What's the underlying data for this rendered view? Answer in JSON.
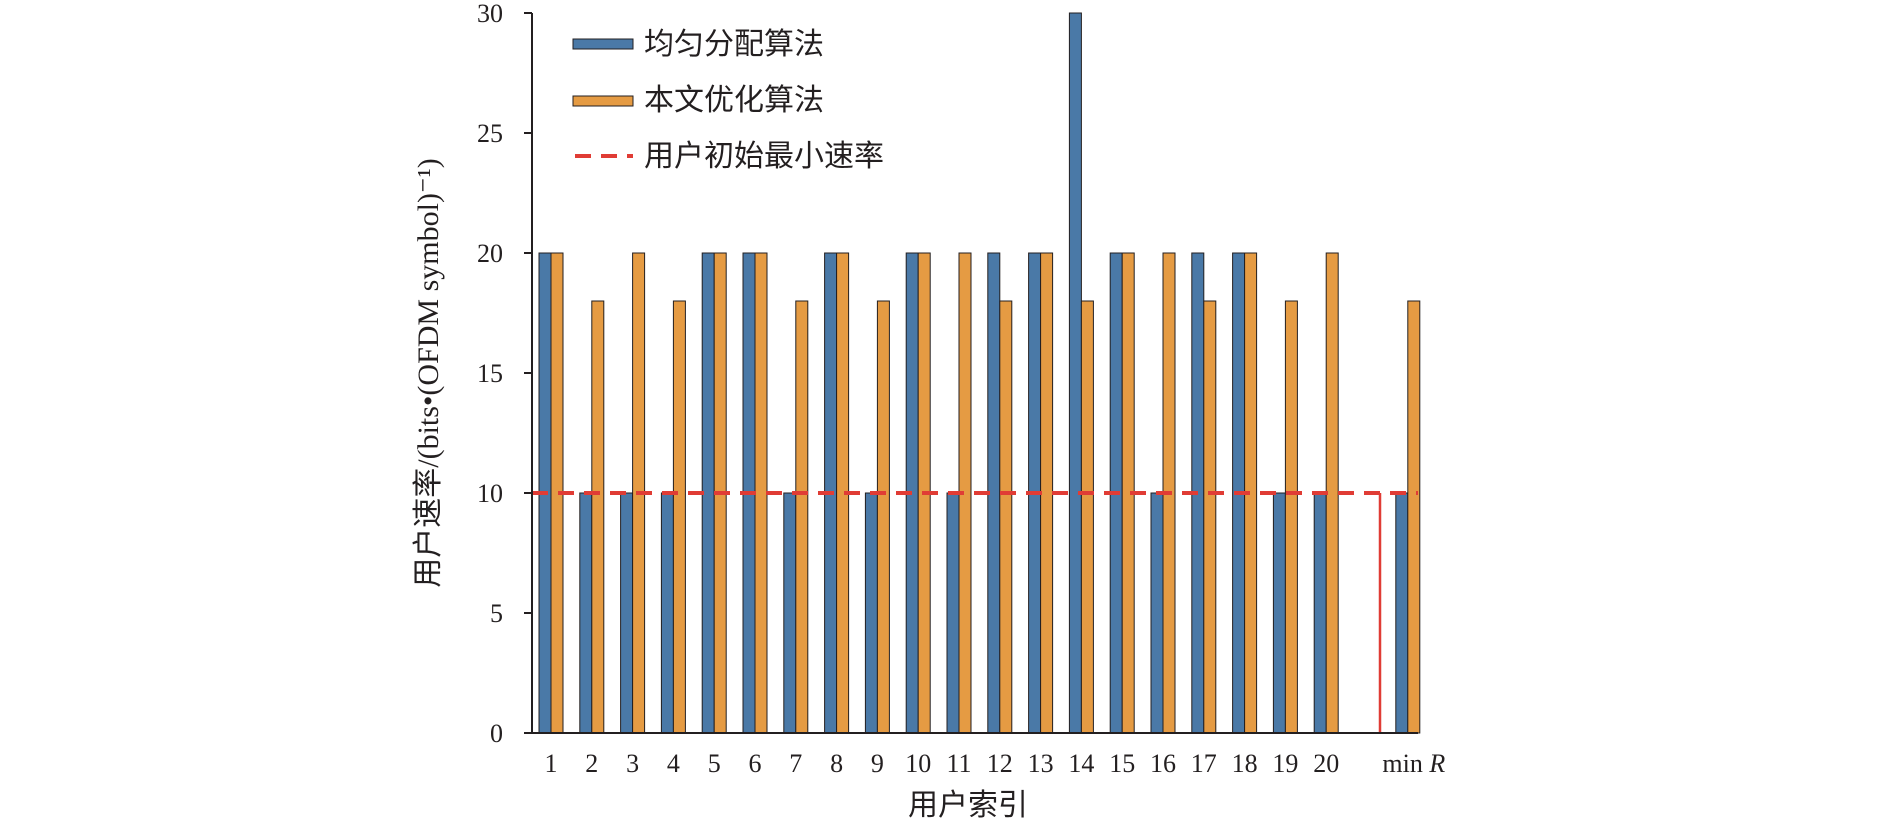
{
  "chart_data": {
    "type": "bar",
    "xlabel": "用户索引",
    "ylabel": "用户速率/(bits•(OFDM symbol)⁻¹)",
    "ylim": [
      0,
      30
    ],
    "yticks": [
      0,
      5,
      10,
      15,
      20,
      25,
      30
    ],
    "categories": [
      "1",
      "2",
      "3",
      "4",
      "5",
      "6",
      "7",
      "8",
      "9",
      "10",
      "11",
      "12",
      "13",
      "14",
      "15",
      "16",
      "17",
      "18",
      "19",
      "20",
      "min R"
    ],
    "series": [
      {
        "name": "均匀分配算法",
        "color": "#4a79a7",
        "values": [
          20,
          10,
          10,
          10,
          20,
          20,
          10,
          20,
          10,
          20,
          10,
          20,
          20,
          30,
          20,
          10,
          20,
          20,
          10,
          10,
          10
        ]
      },
      {
        "name": "本文优化算法",
        "color": "#e59b43",
        "values": [
          20,
          18,
          20,
          18,
          20,
          20,
          18,
          20,
          18,
          20,
          20,
          18,
          20,
          18,
          20,
          20,
          18,
          20,
          18,
          20,
          18
        ]
      }
    ],
    "reference_line": {
      "name": "用户初始最小速率",
      "value": 10,
      "color": "#e03c35",
      "style": "dashed"
    },
    "legend_position": "top-left",
    "grid": false
  }
}
